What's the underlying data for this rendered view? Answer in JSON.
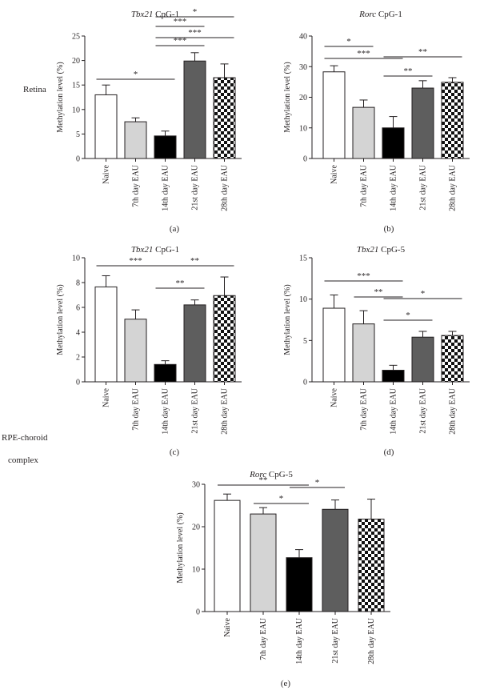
{
  "row_labels": {
    "retina": "Retina",
    "rpe_1": "RPE-choroid",
    "rpe_2": "complex"
  },
  "chart_data": [
    {
      "type": "bar",
      "panel": "(a)",
      "title_gene": "Tbx21",
      "title_rest": " CpG-1",
      "ylabel": "Methylation level (%)",
      "ylim": [
        0,
        25
      ],
      "yticks": [
        0,
        5,
        10,
        15,
        20,
        25
      ],
      "categories": [
        "Naive",
        "7th day EAU",
        "14th day EAU",
        "21st day EAU",
        "28th day EAU"
      ],
      "values": [
        13,
        7.5,
        4.6,
        19.9,
        16.5
      ],
      "errors": [
        2,
        0.8,
        1.0,
        1.7,
        2.8
      ],
      "fills": [
        "#ffffff",
        "#d4d4d4",
        "#000000",
        "#5e5e5e",
        "checker"
      ],
      "significance": [
        {
          "from": 0,
          "to": 2,
          "label": "*"
        },
        {
          "from": 2,
          "to": 4,
          "label": "*"
        },
        {
          "from": 2,
          "to": 3,
          "label": "***"
        },
        {
          "from": 2,
          "to": 4,
          "label": "***"
        },
        {
          "from": 2,
          "to": 3,
          "label": "***"
        }
      ]
    },
    {
      "type": "bar",
      "panel": "(b)",
      "title_gene": "Rorc",
      "title_rest": " CpG-1",
      "ylabel": "Methylation level (%)",
      "ylim": [
        0,
        40
      ],
      "yticks": [
        0,
        10,
        20,
        30,
        40
      ],
      "categories": [
        "Naive",
        "7th day EAU",
        "14th day EAU",
        "21st day EAU",
        "28th day EAU"
      ],
      "values": [
        28.3,
        16.7,
        10,
        23,
        24.9
      ],
      "errors": [
        2,
        2.4,
        3.7,
        2.4,
        1.5
      ],
      "fills": [
        "#ffffff",
        "#d4d4d4",
        "#000000",
        "#5e5e5e",
        "checker"
      ],
      "significance": [
        {
          "from": 0,
          "to": 2,
          "label": "***"
        },
        {
          "from": 0,
          "to": 1,
          "label": "*"
        },
        {
          "from": 2,
          "to": 4,
          "label": "**"
        },
        {
          "from": 2,
          "to": 3,
          "label": "**"
        }
      ]
    },
    {
      "type": "bar",
      "panel": "(c)",
      "title_gene": "Tbx21",
      "title_rest": " CpG-1",
      "ylabel": "Methylation level (%)",
      "ylim": [
        0,
        10
      ],
      "yticks": [
        0,
        2,
        4,
        6,
        8,
        10
      ],
      "categories": [
        "Naive",
        "7th day EAU",
        "14th day EAU",
        "21st day EAU",
        "28th day EAU"
      ],
      "values": [
        7.65,
        5.05,
        1.4,
        6.2,
        6.95
      ],
      "errors": [
        0.9,
        0.75,
        0.3,
        0.4,
        1.5
      ],
      "fills": [
        "#ffffff",
        "#d4d4d4",
        "#000000",
        "#5e5e5e",
        "checker"
      ],
      "significance": [
        {
          "from": 0,
          "to": 2,
          "label": "***"
        },
        {
          "from": 2,
          "to": 4,
          "label": "**"
        },
        {
          "from": 2,
          "to": 3,
          "label": "**"
        }
      ]
    },
    {
      "type": "bar",
      "panel": "(d)",
      "title_gene": "Tbx21",
      "title_rest": " CpG-5",
      "ylabel": "Methylation level (%)",
      "ylim": [
        0,
        15
      ],
      "yticks": [
        0,
        5,
        10,
        15
      ],
      "categories": [
        "Naive",
        "7th day EAU",
        "14th day EAU",
        "21st day EAU",
        "28th day EAU"
      ],
      "values": [
        8.9,
        7,
        1.4,
        5.4,
        5.6
      ],
      "errors": [
        1.6,
        1.6,
        0.6,
        0.7,
        0.5
      ],
      "fills": [
        "#ffffff",
        "#d4d4d4",
        "#000000",
        "#5e5e5e",
        "checker"
      ],
      "significance": [
        {
          "from": 0,
          "to": 2,
          "label": "***"
        },
        {
          "from": 1,
          "to": 2,
          "label": "**"
        },
        {
          "from": 2,
          "to": 4,
          "label": "*"
        },
        {
          "from": 2,
          "to": 3,
          "label": "*"
        }
      ]
    },
    {
      "type": "bar",
      "panel": "(e)",
      "title_gene": "Rorc",
      "title_rest": " CpG-5",
      "ylabel": "Methylation level (%)",
      "ylim": [
        0,
        30
      ],
      "yticks": [
        0,
        10,
        20,
        30
      ],
      "categories": [
        "Naive",
        "7th day EAU",
        "14th day EAU",
        "21st day EAU",
        "28th day EAU"
      ],
      "values": [
        26.2,
        23,
        12.7,
        24.1,
        21.8
      ],
      "errors": [
        1.5,
        1.5,
        1.9,
        2.2,
        4.7
      ],
      "fills": [
        "#ffffff",
        "#d4d4d4",
        "#000000",
        "#5e5e5e",
        "checker"
      ],
      "significance": [
        {
          "from": 0,
          "to": 2,
          "label": "**"
        },
        {
          "from": 1,
          "to": 2,
          "label": "*"
        },
        {
          "from": 2,
          "to": 3,
          "label": "*"
        }
      ]
    }
  ]
}
